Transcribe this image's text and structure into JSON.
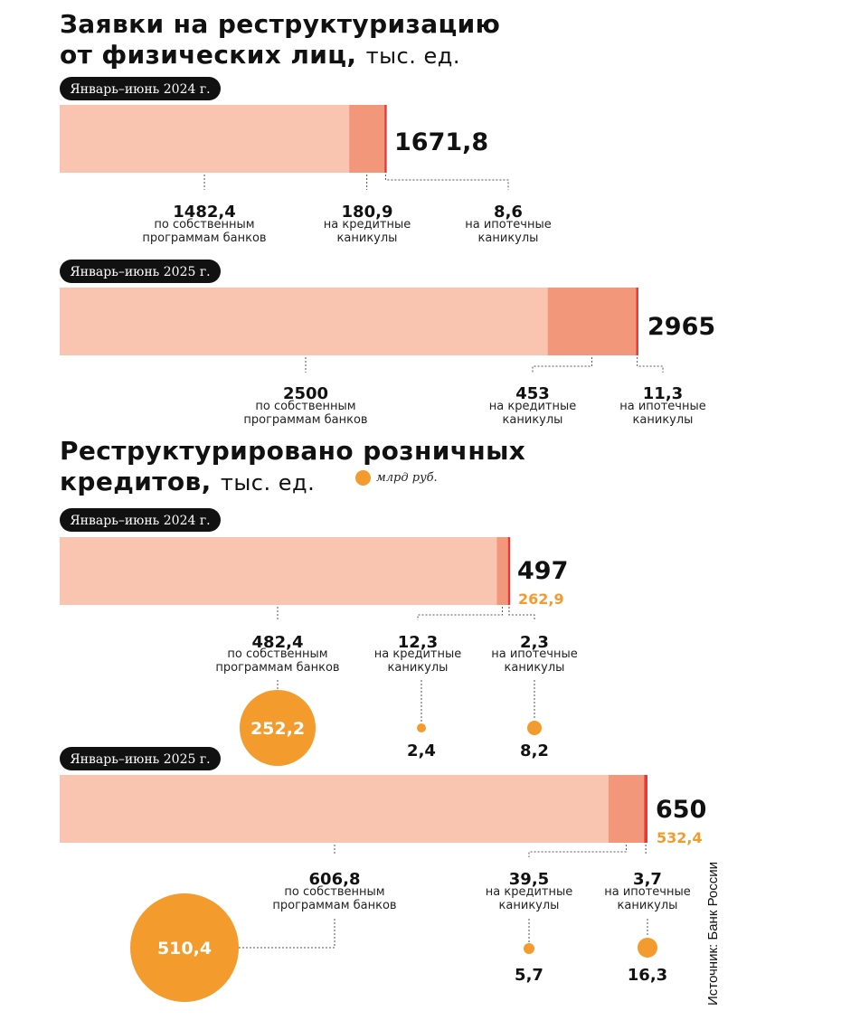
{
  "section1": {
    "title_line1": "Заявки на реструктуризацию",
    "title_line2": "от физических лиц,",
    "unit": "тыс. ед."
  },
  "section2": {
    "title_line1": "Реструктурировано розничных",
    "title_line2": "кредитов,",
    "unit": "тыс. ед.",
    "legend": "млрд руб."
  },
  "source": "Источник: Банк России",
  "colors": {
    "own": "#f9c5b0",
    "holiday": "#f2977a",
    "mortgage": "#e53935",
    "bubble": "#f39b2d",
    "badge": "#111111"
  },
  "chart_data": [
    {
      "type": "bar",
      "stacked": true,
      "orientation": "horizontal",
      "title": "Заявки на реструктуризацию от физических лиц, тыс. ед.",
      "period": "Январь–июнь 2024 г.",
      "total": 1671.8,
      "total_label": "1671,8",
      "segments": [
        {
          "value": 1482.4,
          "value_label": "1482,4",
          "label": "по собственным программам банков",
          "label_lines": [
            "по собственным",
            "программам банков"
          ]
        },
        {
          "value": 180.9,
          "value_label": "180,9",
          "label": "на кредитные каникулы",
          "label_lines": [
            "на кредитные",
            "каникулы"
          ]
        },
        {
          "value": 8.6,
          "value_label": "8,6",
          "label": "на ипотечные каникулы",
          "label_lines": [
            "на ипотечные",
            "каникулы"
          ]
        }
      ]
    },
    {
      "type": "bar",
      "stacked": true,
      "orientation": "horizontal",
      "title": "Заявки на реструктуризацию от физических лиц, тыс. ед.",
      "period": "Январь–июнь 2025 г.",
      "total": 2965,
      "total_label": "2965",
      "segments": [
        {
          "value": 2500,
          "value_label": "2500",
          "label": "по собственным программам банков",
          "label_lines": [
            "по собственным",
            "программам банков"
          ]
        },
        {
          "value": 453,
          "value_label": "453",
          "label": "на кредитные каникулы",
          "label_lines": [
            "на кредитные",
            "каникулы"
          ]
        },
        {
          "value": 11.3,
          "value_label": "11,3",
          "label": "на ипотечные каникулы",
          "label_lines": [
            "на ипотечные",
            "каникулы"
          ]
        }
      ]
    },
    {
      "type": "bar",
      "stacked": true,
      "orientation": "horizontal",
      "title": "Реструктурировано розничных кредитов, тыс. ед.",
      "period": "Январь–июнь 2024 г.",
      "total": 497,
      "total_label": "497",
      "total_amount": 262.9,
      "total_amount_label": "262,9",
      "segments": [
        {
          "value": 482.4,
          "value_label": "482,4",
          "label": "по собственным программам банков",
          "label_lines": [
            "по собственным",
            "программам банков"
          ],
          "amount": 252.2,
          "amount_label": "252,2"
        },
        {
          "value": 12.3,
          "value_label": "12,3",
          "label": "на кредитные каникулы",
          "label_lines": [
            "на кредитные",
            "каникулы"
          ],
          "amount": 2.4,
          "amount_label": "2,4"
        },
        {
          "value": 2.3,
          "value_label": "2,3",
          "label": "на ипотечные каникулы",
          "label_lines": [
            "на ипотечные",
            "каникулы"
          ],
          "amount": 8.2,
          "amount_label": "8,2"
        }
      ]
    },
    {
      "type": "bar",
      "stacked": true,
      "orientation": "horizontal",
      "title": "Реструктурировано розничных кредитов, тыс. ед.",
      "period": "Январь–июнь 2025 г.",
      "total": 650,
      "total_label": "650",
      "total_amount": 532.4,
      "total_amount_label": "532,4",
      "segments": [
        {
          "value": 606.8,
          "value_label": "606,8",
          "label": "по собственным программам банков",
          "label_lines": [
            "по собственным",
            "программам банков"
          ],
          "amount": 510.4,
          "amount_label": "510,4"
        },
        {
          "value": 39.5,
          "value_label": "39,5",
          "label": "на кредитные каникулы",
          "label_lines": [
            "на кредитные",
            "каникулы"
          ],
          "amount": 5.7,
          "amount_label": "5,7"
        },
        {
          "value": 3.7,
          "value_label": "3,7",
          "label": "на ипотечные каникулы",
          "label_lines": [
            "на ипотечные",
            "каникулы"
          ],
          "amount": 16.3,
          "amount_label": "16,3"
        }
      ]
    }
  ]
}
